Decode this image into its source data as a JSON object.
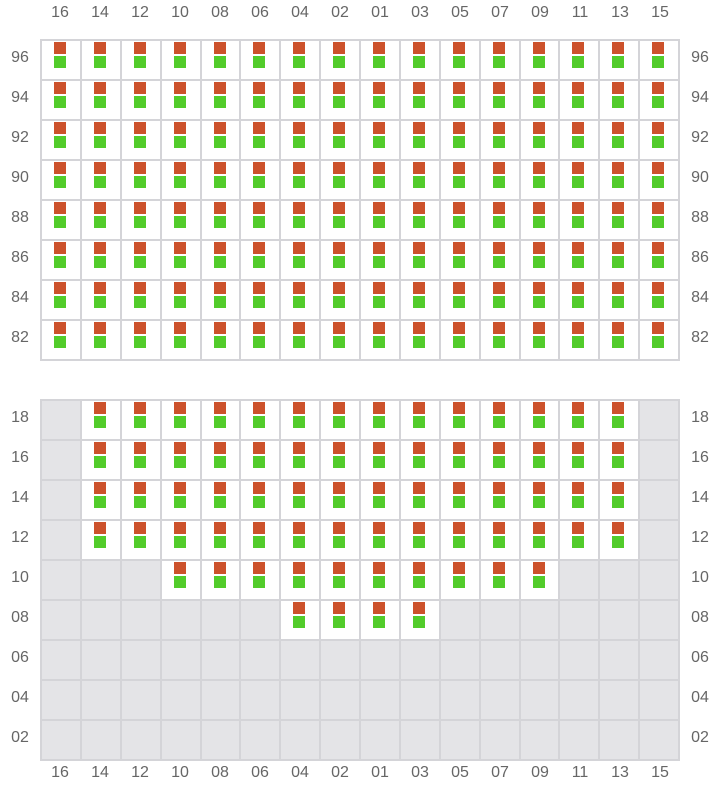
{
  "columns": [
    "16",
    "14",
    "12",
    "10",
    "08",
    "06",
    "04",
    "02",
    "01",
    "03",
    "05",
    "07",
    "09",
    "11",
    "13",
    "15"
  ],
  "colors": {
    "top_marker": "#cc512b",
    "bottom_marker": "#52cc2b",
    "available_cell": "#ffffff",
    "unavailable_cell": "#e4e4e7",
    "grid_line": "#d4d4d8"
  },
  "sections": [
    {
      "rows": [
        {
          "label": "96",
          "active_columns": [
            "16",
            "14",
            "12",
            "10",
            "08",
            "06",
            "04",
            "02",
            "01",
            "03",
            "05",
            "07",
            "09",
            "11",
            "13",
            "15"
          ]
        },
        {
          "label": "94",
          "active_columns": [
            "16",
            "14",
            "12",
            "10",
            "08",
            "06",
            "04",
            "02",
            "01",
            "03",
            "05",
            "07",
            "09",
            "11",
            "13",
            "15"
          ]
        },
        {
          "label": "92",
          "active_columns": [
            "16",
            "14",
            "12",
            "10",
            "08",
            "06",
            "04",
            "02",
            "01",
            "03",
            "05",
            "07",
            "09",
            "11",
            "13",
            "15"
          ]
        },
        {
          "label": "90",
          "active_columns": [
            "16",
            "14",
            "12",
            "10",
            "08",
            "06",
            "04",
            "02",
            "01",
            "03",
            "05",
            "07",
            "09",
            "11",
            "13",
            "15"
          ]
        },
        {
          "label": "88",
          "active_columns": [
            "16",
            "14",
            "12",
            "10",
            "08",
            "06",
            "04",
            "02",
            "01",
            "03",
            "05",
            "07",
            "09",
            "11",
            "13",
            "15"
          ]
        },
        {
          "label": "86",
          "active_columns": [
            "16",
            "14",
            "12",
            "10",
            "08",
            "06",
            "04",
            "02",
            "01",
            "03",
            "05",
            "07",
            "09",
            "11",
            "13",
            "15"
          ]
        },
        {
          "label": "84",
          "active_columns": [
            "16",
            "14",
            "12",
            "10",
            "08",
            "06",
            "04",
            "02",
            "01",
            "03",
            "05",
            "07",
            "09",
            "11",
            "13",
            "15"
          ]
        },
        {
          "label": "82",
          "active_columns": [
            "16",
            "14",
            "12",
            "10",
            "08",
            "06",
            "04",
            "02",
            "01",
            "03",
            "05",
            "07",
            "09",
            "11",
            "13",
            "15"
          ]
        }
      ]
    },
    {
      "rows": [
        {
          "label": "18",
          "active_columns": [
            "14",
            "12",
            "10",
            "08",
            "06",
            "04",
            "02",
            "01",
            "03",
            "05",
            "07",
            "09",
            "11",
            "13"
          ]
        },
        {
          "label": "16",
          "active_columns": [
            "14",
            "12",
            "10",
            "08",
            "06",
            "04",
            "02",
            "01",
            "03",
            "05",
            "07",
            "09",
            "11",
            "13"
          ]
        },
        {
          "label": "14",
          "active_columns": [
            "14",
            "12",
            "10",
            "08",
            "06",
            "04",
            "02",
            "01",
            "03",
            "05",
            "07",
            "09",
            "11",
            "13"
          ]
        },
        {
          "label": "12",
          "active_columns": [
            "14",
            "12",
            "10",
            "08",
            "06",
            "04",
            "02",
            "01",
            "03",
            "05",
            "07",
            "09",
            "11",
            "13"
          ]
        },
        {
          "label": "10",
          "active_columns": [
            "10",
            "08",
            "06",
            "04",
            "02",
            "01",
            "03",
            "05",
            "07",
            "09"
          ]
        },
        {
          "label": "08",
          "active_columns": [
            "04",
            "02",
            "01",
            "03"
          ]
        },
        {
          "label": "06",
          "active_columns": []
        },
        {
          "label": "04",
          "active_columns": []
        },
        {
          "label": "02",
          "active_columns": []
        }
      ]
    }
  ]
}
